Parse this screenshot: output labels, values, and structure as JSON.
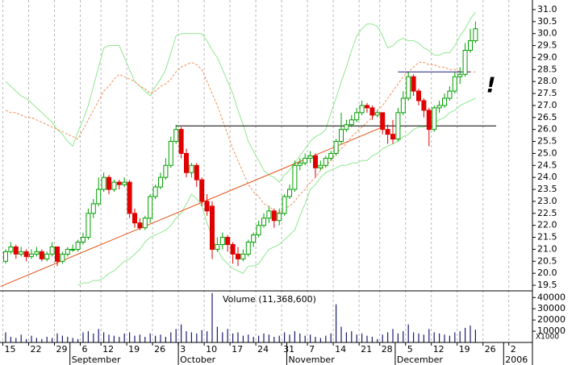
{
  "chart_data": {
    "type": "candlestick",
    "categories": [
      "15",
      null,
      null,
      null,
      null,
      "22",
      null,
      null,
      null,
      null,
      "29",
      null,
      null,
      null,
      null,
      "6",
      null,
      null,
      null,
      "12",
      null,
      null,
      null,
      null,
      "19",
      null,
      null,
      null,
      null,
      "26",
      null,
      null,
      null,
      null,
      "3",
      null,
      null,
      null,
      null,
      "10",
      null,
      null,
      null,
      null,
      "17",
      null,
      null,
      null,
      null,
      "24",
      null,
      null,
      null,
      null,
      "31",
      null,
      null,
      null,
      null,
      "7",
      null,
      null,
      null,
      null,
      "14",
      null,
      null,
      null,
      null,
      "21",
      null,
      null,
      null,
      "28",
      null,
      null,
      null,
      null,
      "5",
      null,
      null,
      null,
      null,
      "12",
      null,
      null,
      null,
      null,
      "19",
      null,
      null,
      null,
      null,
      "26",
      null,
      null,
      null,
      null,
      "2"
    ],
    "month_categories": [
      null,
      null,
      null,
      null,
      null,
      null,
      null,
      null,
      null,
      null,
      null,
      null,
      null,
      "September",
      null,
      null,
      null,
      null,
      null,
      null,
      null,
      null,
      null,
      null,
      null,
      null,
      null,
      null,
      null,
      null,
      null,
      null,
      null,
      null,
      "October",
      null,
      null,
      null,
      null,
      null,
      null,
      null,
      null,
      null,
      null,
      null,
      null,
      null,
      null,
      null,
      null,
      null,
      null,
      null,
      null,
      "November",
      null,
      null,
      null,
      null,
      null,
      null,
      null,
      null,
      null,
      null,
      null,
      null,
      null,
      null,
      null,
      null,
      null,
      null,
      null,
      null,
      "December",
      null,
      null,
      null,
      null,
      null,
      null,
      null,
      null,
      null,
      null,
      null,
      null,
      null,
      null,
      null,
      null,
      null,
      null,
      null,
      null,
      "2006"
    ],
    "open": [
      20.5,
      20.9,
      21.1,
      20.8,
      20.9,
      20.7,
      20.8,
      20.9,
      20.6,
      20.8,
      21.1,
      20.5,
      20.8,
      21.0,
      21.0,
      21.3,
      21.5,
      22.5,
      22.9,
      23.5,
      24.0,
      23.5,
      23.8,
      23.7,
      23.8,
      22.5,
      22.1,
      21.9,
      22.3,
      23.2,
      23.6,
      24.0,
      24.5,
      25.5,
      26.0,
      25.0,
      24.2,
      24.5,
      23.9,
      23.0,
      22.8,
      21.0,
      21.2,
      21.5,
      21.2,
      20.8,
      20.6,
      20.8,
      21.3,
      21.6,
      22.0,
      22.3,
      22.6,
      22.2,
      22.5,
      23.2,
      23.5,
      24.5,
      24.6,
      24.8,
      24.9,
      24.4,
      24.5,
      24.8,
      25.0,
      25.5,
      26.0,
      26.2,
      26.4,
      26.7,
      27.0,
      26.9,
      26.6,
      26.7,
      26.0,
      25.8,
      25.6,
      26.7,
      27.3,
      28.2,
      27.6,
      27.2,
      26.8,
      26.0,
      26.9,
      27.0,
      27.3,
      27.6,
      28.2,
      28.3,
      29.3,
      29.7,
      null,
      null,
      null,
      null,
      null,
      null,
      null
    ],
    "high": [
      21.0,
      21.3,
      21.2,
      21.1,
      21.0,
      21.0,
      21.1,
      21.0,
      20.9,
      21.3,
      21.1,
      20.9,
      21.1,
      21.2,
      21.4,
      21.7,
      22.7,
      23.1,
      24.0,
      24.2,
      24.1,
      23.9,
      23.9,
      24.0,
      23.9,
      22.7,
      22.3,
      22.4,
      23.3,
      23.7,
      24.2,
      24.8,
      25.7,
      26.2,
      26.1,
      25.2,
      24.6,
      24.6,
      24.0,
      23.3,
      23.0,
      21.5,
      21.7,
      21.6,
      21.3,
      21.1,
      21.0,
      21.4,
      21.7,
      22.2,
      22.5,
      22.8,
      22.7,
      22.7,
      23.3,
      23.7,
      24.7,
      24.8,
      25.0,
      25.1,
      25.0,
      24.7,
      24.9,
      25.1,
      25.6,
      26.7,
      26.4,
      26.6,
      26.9,
      27.2,
      27.1,
      27.0,
      26.8,
      26.7,
      26.2,
      26.4,
      26.9,
      27.6,
      28.4,
      28.3,
      27.7,
      27.3,
      26.9,
      27.0,
      27.2,
      27.5,
      27.8,
      28.4,
      28.6,
      29.6,
      30.2,
      30.5,
      null,
      null,
      null,
      null,
      null,
      null,
      null
    ],
    "low": [
      20.4,
      20.8,
      20.6,
      20.7,
      20.5,
      20.6,
      20.7,
      20.5,
      20.5,
      20.7,
      20.3,
      20.4,
      20.7,
      20.9,
      20.9,
      21.2,
      21.4,
      22.3,
      22.8,
      23.4,
      23.3,
      23.4,
      23.5,
      23.6,
      22.3,
      21.9,
      21.8,
      21.8,
      22.1,
      23.1,
      23.5,
      23.9,
      24.4,
      25.4,
      24.8,
      24.0,
      24.0,
      23.6,
      22.8,
      22.4,
      20.6,
      20.9,
      21.0,
      20.9,
      20.4,
      20.3,
      20.5,
      20.7,
      21.1,
      21.5,
      21.9,
      22.1,
      21.9,
      22.0,
      22.4,
      23.1,
      23.4,
      24.3,
      24.5,
      24.6,
      24.0,
      24.3,
      24.4,
      24.7,
      24.9,
      25.4,
      25.9,
      26.1,
      26.3,
      26.6,
      26.7,
      26.4,
      26.5,
      25.8,
      25.4,
      25.4,
      25.5,
      26.6,
      27.2,
      27.4,
      27.0,
      26.5,
      25.3,
      25.9,
      26.7,
      26.9,
      27.2,
      27.5,
      27.9,
      28.2,
      29.2,
      29.6,
      null,
      null,
      null,
      null,
      null,
      null,
      null
    ],
    "close": [
      20.9,
      21.1,
      20.8,
      20.9,
      20.7,
      20.8,
      20.9,
      20.6,
      20.8,
      21.1,
      20.5,
      20.8,
      21.0,
      21.0,
      21.3,
      21.5,
      22.5,
      22.9,
      23.5,
      24.0,
      23.5,
      23.8,
      23.7,
      23.8,
      22.5,
      22.1,
      21.9,
      22.3,
      23.2,
      23.6,
      24.0,
      24.5,
      25.5,
      26.0,
      25.0,
      24.2,
      24.5,
      23.9,
      23.0,
      22.6,
      21.0,
      21.2,
      21.5,
      21.2,
      20.8,
      20.6,
      20.8,
      21.3,
      21.6,
      22.0,
      22.3,
      22.6,
      22.2,
      22.5,
      23.2,
      23.5,
      24.5,
      24.6,
      24.8,
      24.9,
      24.4,
      24.5,
      24.8,
      25.0,
      25.5,
      26.0,
      26.2,
      26.4,
      26.7,
      27.0,
      26.9,
      26.6,
      26.7,
      26.0,
      25.8,
      25.6,
      26.7,
      27.3,
      28.2,
      27.6,
      27.2,
      26.8,
      26.0,
      26.9,
      27.0,
      27.3,
      27.6,
      28.2,
      28.3,
      29.3,
      29.7,
      30.2,
      null,
      null,
      null,
      null,
      null,
      null,
      null
    ],
    "up_color": "#00a000",
    "down_color": "#e00000",
    "ylim": [
      19.3,
      31.4
    ],
    "yticks": [
      19.5,
      {
        "value": 20,
        "label": "20.0"
      },
      20.5,
      {
        "value": 21,
        "label": "21.0"
      },
      21.5,
      {
        "value": 22,
        "label": "22.0"
      },
      22.5,
      {
        "value": 23,
        "label": "23.0"
      },
      23.5,
      {
        "value": 24,
        "label": "24.0"
      },
      24.5,
      {
        "value": 25,
        "label": "25.0"
      },
      25.5,
      {
        "value": 26,
        "label": "26.0"
      },
      26.5,
      {
        "value": 27,
        "label": "27.0"
      },
      27.5,
      {
        "value": 28,
        "label": "28.0"
      },
      28.5,
      {
        "value": 29,
        "label": "29.0"
      },
      29.5,
      {
        "value": 30,
        "label": "30.0"
      },
      30.5,
      {
        "value": 31,
        "label": "31.0"
      }
    ],
    "grid": true,
    "overlays": [
      {
        "color": "#90e890",
        "dashed": false,
        "values": [
          28.0,
          27.8,
          27.6,
          27.4,
          27.3,
          27.1,
          26.9,
          26.7,
          26.5,
          26.3,
          26.0,
          25.8,
          25.5,
          25.3,
          25.9,
          26.4,
          27.0,
          27.8,
          28.6,
          29.4,
          29.5,
          29.5,
          29.5,
          29.0,
          28.5,
          28.0,
          27.8,
          27.6,
          27.4,
          27.8,
          28.1,
          28.5,
          29.2,
          29.9,
          30.0,
          30.0,
          30.0,
          30.0,
          30.0,
          29.7,
          29.3,
          29.0,
          28.5,
          28.0,
          27.5,
          26.8,
          26.2,
          25.5,
          25.1,
          24.7,
          24.3,
          24.1,
          24.0,
          23.8,
          24.1,
          24.3,
          24.6,
          24.9,
          25.2,
          25.5,
          25.7,
          25.8,
          26.0,
          26.7,
          27.3,
          28.0,
          28.6,
          29.3,
          29.9,
          30.2,
          30.4,
          30.4,
          30.3,
          29.9,
          29.4,
          29.5,
          29.7,
          29.8,
          29.7,
          29.7,
          29.6,
          29.4,
          29.3,
          29.1,
          29.1,
          29.2,
          29.2,
          29.5,
          29.9,
          30.2,
          30.6,
          30.9,
          null,
          null,
          null,
          null,
          null,
          null,
          null
        ]
      },
      {
        "color": "#90e890",
        "dashed": false,
        "values": [
          null,
          null,
          null,
          null,
          null,
          null,
          null,
          null,
          null,
          null,
          null,
          null,
          null,
          null,
          19.5,
          19.6,
          19.6,
          19.7,
          19.7,
          19.8,
          20.0,
          20.1,
          20.3,
          20.5,
          20.6,
          20.8,
          21.0,
          21.3,
          21.5,
          21.6,
          21.7,
          21.8,
          22.0,
          22.3,
          22.5,
          22.9,
          23.3,
          23.1,
          22.8,
          22.1,
          21.5,
          21.0,
          20.6,
          20.4,
          20.2,
          20.1,
          20.0,
          20.3,
          20.3,
          20.4,
          20.7,
          21.0,
          21.1,
          21.2,
          21.4,
          21.6,
          21.8,
          22.4,
          22.9,
          23.5,
          23.7,
          24.0,
          24.2,
          24.3,
          24.4,
          24.5,
          24.5,
          24.6,
          24.6,
          24.7,
          24.7,
          24.9,
          25.0,
          25.2,
          25.3,
          25.4,
          25.5,
          25.7,
          25.8,
          26.0,
          26.1,
          26.1,
          26.2,
          26.3,
          26.4,
          26.5,
          26.7,
          26.8,
          27.0,
          27.1,
          27.2,
          27.3,
          null,
          null,
          null,
          null,
          null,
          null,
          null
        ]
      },
      {
        "color": "#f0905a",
        "dashed": true,
        "values": [
          26.8,
          26.7,
          26.7,
          26.6,
          26.5,
          26.5,
          26.4,
          26.3,
          26.2,
          26.1,
          26.0,
          25.9,
          25.8,
          25.7,
          25.6,
          26.0,
          26.4,
          26.8,
          27.2,
          27.6,
          27.8,
          28.1,
          28.3,
          28.2,
          28.1,
          28.0,
          27.8,
          27.7,
          27.5,
          27.6,
          27.8,
          27.9,
          28.1,
          28.4,
          28.6,
          28.7,
          28.8,
          28.7,
          28.5,
          28.0,
          27.5,
          27.0,
          26.4,
          25.8,
          25.2,
          24.7,
          24.2,
          23.7,
          23.4,
          23.2,
          22.9,
          22.8,
          22.6,
          22.5,
          22.7,
          22.8,
          23.0,
          23.3,
          23.5,
          23.8,
          24.0,
          24.3,
          24.5,
          24.7,
          25.0,
          25.2,
          25.4,
          25.7,
          25.9,
          26.1,
          26.3,
          26.5,
          26.8,
          27.0,
          27.3,
          27.6,
          27.9,
          28.2,
          28.4,
          28.6,
          28.8,
          28.8,
          28.7,
          28.7,
          28.6,
          28.6,
          28.5,
          28.5,
          28.4,
          28.4,
          28.4,
          28.4,
          null,
          null,
          null,
          null,
          null,
          null,
          null
        ]
      }
    ],
    "reference_lines": [
      {
        "color": "#e05010",
        "x": [
          -1,
          73
        ],
        "y": [
          19.45,
          26.1
        ]
      },
      {
        "color": "#000000",
        "x": [
          33,
          95
        ],
        "y": [
          26.15,
          26.15
        ]
      },
      {
        "color": "#202080",
        "x": [
          76,
          90
        ],
        "y": [
          28.4,
          28.4
        ]
      }
    ],
    "annotation": {
      "text": "!",
      "x": 94,
      "y": 27.8,
      "color": "#2a9a2a"
    },
    "volume": {
      "title": "Volume (11,368,600)",
      "color": "#1a1a6e",
      "unit_label": "X1000",
      "ylim": [
        0,
        44500
      ],
      "yticks": [
        10000,
        20000,
        30000,
        40000
      ],
      "values": [
        9000,
        5000,
        4000,
        7000,
        3000,
        6000,
        4000,
        3000,
        5000,
        4000,
        8000,
        6000,
        5000,
        4000,
        3000,
        9000,
        10000,
        8000,
        12000,
        9000,
        7000,
        6000,
        5000,
        8000,
        9000,
        6000,
        7000,
        5000,
        8000,
        6000,
        7000,
        5000,
        9000,
        12000,
        16000,
        10000,
        9000,
        8000,
        11000,
        10000,
        44000,
        14000,
        9000,
        12000,
        8000,
        9000,
        6000,
        7000,
        5000,
        6000,
        8000,
        7000,
        5000,
        6000,
        9000,
        7000,
        10000,
        8000,
        6000,
        7000,
        5000,
        4000,
        6000,
        8000,
        34000,
        14000,
        9000,
        10000,
        7000,
        8000,
        6000,
        5000,
        3000,
        7000,
        9000,
        12000,
        8000,
        10000,
        16000,
        9000,
        8000,
        7000,
        12000,
        9000,
        8000,
        7000,
        6000,
        9000,
        10000,
        13000,
        15000,
        11368.6,
        null,
        null,
        null,
        null,
        null,
        null,
        null
      ]
    }
  }
}
